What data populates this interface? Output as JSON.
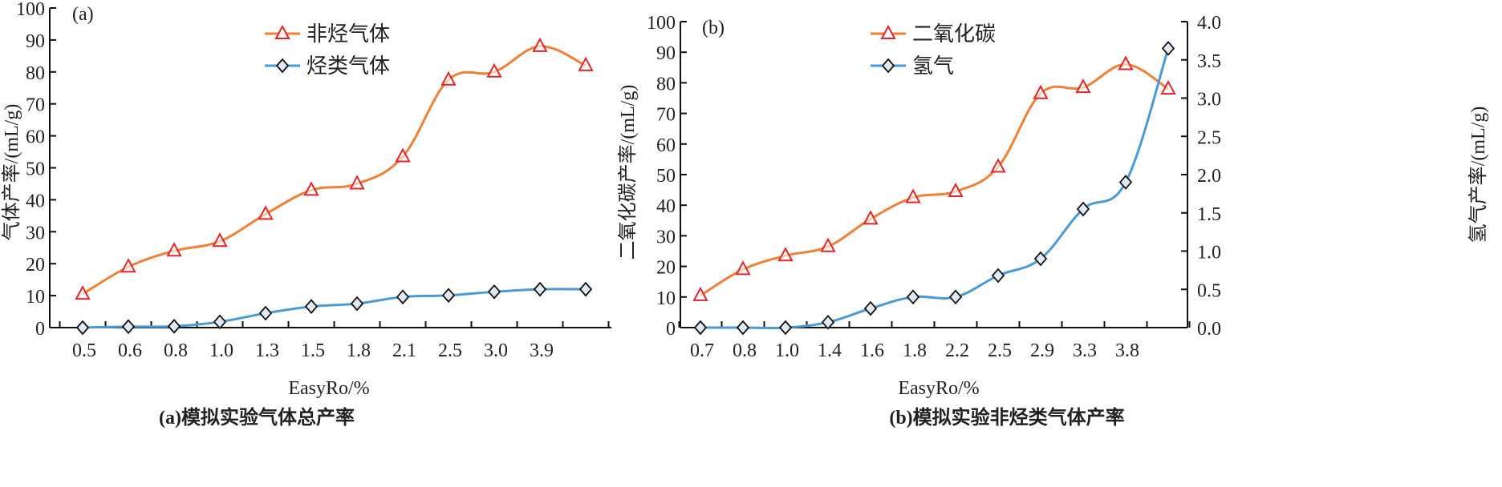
{
  "chart_data": [
    {
      "type": "line",
      "panel_label": "(a)",
      "caption": "(a)模拟实验气体总产率",
      "xlabel": "EasyRo/%",
      "ylabel": "气体产率/(mL/g)",
      "ylim": [
        0,
        100
      ],
      "yticks": [
        0,
        10,
        20,
        30,
        40,
        50,
        60,
        70,
        80,
        90,
        100
      ],
      "categories": [
        "0.5",
        "0.6",
        "0.8",
        "1.0",
        "1.3",
        "1.5",
        "1.8",
        "2.1",
        "2.5",
        "3.0",
        "3.9",
        ""
      ],
      "legend_position": "top-center",
      "series": [
        {
          "name": "非烃气体",
          "color": "#ef8036",
          "marker": "triangle",
          "marker_color": "#e0262b",
          "axis": "left",
          "values": [
            10.5,
            19,
            24,
            27,
            35.5,
            43,
            45,
            53.5,
            77.5,
            80,
            88,
            82
          ]
        },
        {
          "name": "烃类气体",
          "color": "#4a9ad6",
          "marker": "diamond",
          "marker_color": "#111111",
          "axis": "left",
          "values": [
            0,
            0.3,
            0.4,
            1.8,
            4.5,
            6.6,
            7.5,
            9.6,
            10.1,
            11.2,
            12,
            12
          ]
        }
      ]
    },
    {
      "type": "line",
      "panel_label": "(b)",
      "caption": "(b)模拟实验非烃类气体产率",
      "xlabel": "EasyRo/%",
      "ylabel": "二氧化碳产率/(mL/g)",
      "y2label": "氢气产率/(mL/g)",
      "ylim": [
        0,
        100
      ],
      "yticks": [
        0,
        10,
        20,
        30,
        40,
        50,
        60,
        70,
        80,
        90,
        100
      ],
      "y2lim": [
        0,
        4
      ],
      "y2ticks": [
        "0.0",
        "0.5",
        "1.0",
        "1.5",
        "2.0",
        "2.5",
        "3.0",
        "3.5",
        "4.0"
      ],
      "categories": [
        "0.7",
        "0.8",
        "1.0",
        "1.4",
        "1.6",
        "1.8",
        "2.2",
        "2.5",
        "2.9",
        "3.3",
        "3.8",
        ""
      ],
      "legend_position": "top-center",
      "series": [
        {
          "name": "二氧化碳",
          "color": "#ef8036",
          "marker": "triangle",
          "marker_color": "#e0262b",
          "axis": "left",
          "values": [
            10.5,
            19,
            23.5,
            26.5,
            35.5,
            42.5,
            44.5,
            52.5,
            76.5,
            78.5,
            86,
            78
          ]
        },
        {
          "name": "氢气",
          "color": "#4a9ad6",
          "marker": "diamond",
          "marker_color": "#111111",
          "axis": "right",
          "values": [
            0,
            0,
            0,
            0.07,
            0.25,
            0.4,
            0.4,
            0.68,
            0.9,
            1.55,
            1.9,
            3.65
          ]
        }
      ]
    }
  ]
}
